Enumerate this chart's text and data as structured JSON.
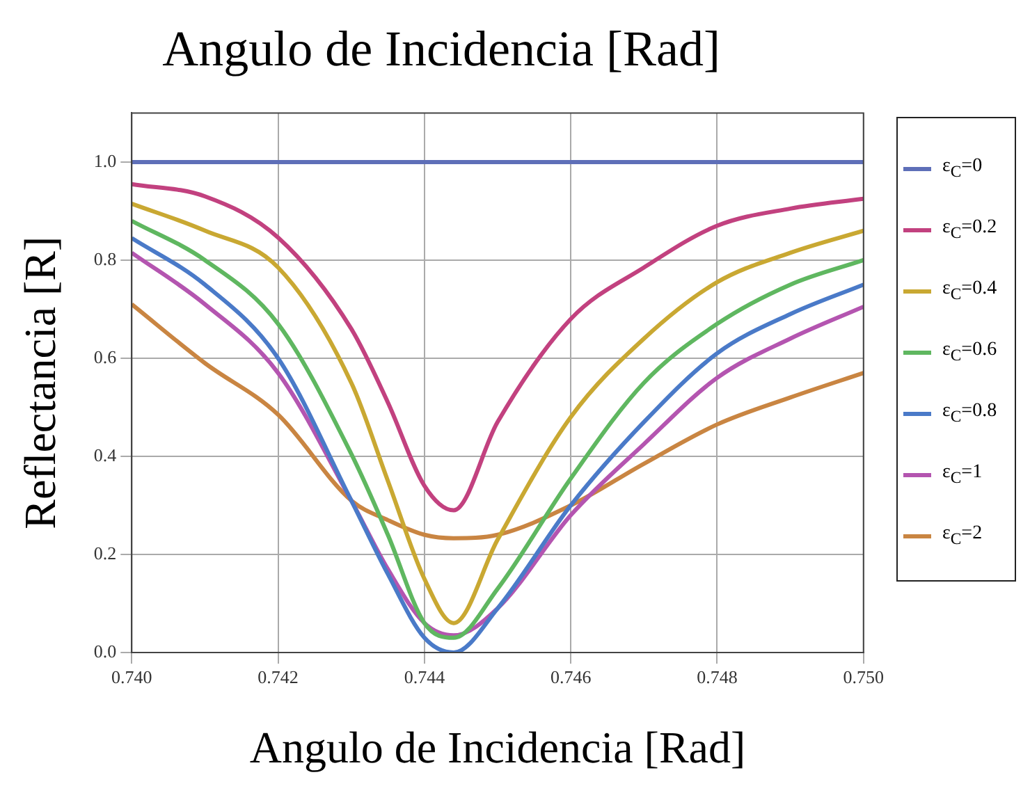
{
  "chart_data": {
    "type": "line",
    "title": "Angulo de Incidencia [Rad]",
    "xlabel": "Angulo de Incidencia [Rad]",
    "ylabel": "Reflectancia [R]",
    "x": [
      0.74,
      0.741,
      0.742,
      0.743,
      0.7435,
      0.744,
      0.7444,
      0.745,
      0.746,
      0.747,
      0.748,
      0.749,
      0.75
    ],
    "series": [
      {
        "name": "ε$_{C}$=0",
        "color": "#5e6fb8",
        "x": [
          0.74,
          0.75
        ],
        "values": [
          1.0,
          1.0
        ]
      },
      {
        "name": "ε$_{C}$=0.2",
        "color": "#c2417f",
        "values": [
          0.955,
          0.93,
          0.846,
          0.66,
          0.51,
          0.34,
          0.29,
          0.47,
          0.68,
          0.785,
          0.87,
          0.905,
          0.925
        ]
      },
      {
        "name": "ε$_{C}$=0.4",
        "color": "#c9a832",
        "values": [
          0.915,
          0.86,
          0.785,
          0.55,
          0.35,
          0.15,
          0.06,
          0.23,
          0.48,
          0.64,
          0.755,
          0.815,
          0.86
        ]
      },
      {
        "name": "ε$_{C}$=0.6",
        "color": "#5fb760",
        "values": [
          0.88,
          0.8,
          0.67,
          0.405,
          0.24,
          0.06,
          0.03,
          0.13,
          0.355,
          0.55,
          0.67,
          0.75,
          0.8
        ]
      },
      {
        "name": "ε$_{C}$=0.8",
        "color": "#4a7ac8",
        "values": [
          0.845,
          0.75,
          0.6,
          0.31,
          0.16,
          0.03,
          0.0,
          0.09,
          0.3,
          0.47,
          0.61,
          0.69,
          0.75
        ]
      },
      {
        "name": "ε$_{C}$=1",
        "color": "#b455b0",
        "values": [
          0.815,
          0.71,
          0.57,
          0.31,
          0.17,
          0.06,
          0.035,
          0.09,
          0.28,
          0.425,
          0.56,
          0.64,
          0.705
        ]
      },
      {
        "name": "ε$_{C}$=2",
        "color": "#c98542",
        "values": [
          0.71,
          0.59,
          0.485,
          0.31,
          0.27,
          0.24,
          0.233,
          0.24,
          0.3,
          0.385,
          0.465,
          0.52,
          0.57
        ]
      }
    ],
    "xlim": [
      0.74,
      0.75
    ],
    "xticks": [
      {
        "value": 0.74,
        "label": "0.740"
      },
      {
        "value": 0.742,
        "label": "0.742"
      },
      {
        "value": 0.744,
        "label": "0.744"
      },
      {
        "value": 0.746,
        "label": "0.746"
      },
      {
        "value": 0.748,
        "label": "0.748"
      },
      {
        "value": 0.75,
        "label": "0.750"
      }
    ],
    "ylim": [
      0,
      1.1
    ],
    "yticks": [
      {
        "value": 0,
        "label": "0.0"
      },
      {
        "value": 0.2,
        "label": "0.2"
      },
      {
        "value": 0.4,
        "label": "0.4"
      },
      {
        "value": 0.6,
        "label": "0.6"
      },
      {
        "value": 0.8,
        "label": "0.8"
      },
      {
        "value": 1,
        "label": "1.0"
      }
    ],
    "grid": true,
    "legend": "right",
    "marker": "none",
    "line_style": "solid"
  }
}
